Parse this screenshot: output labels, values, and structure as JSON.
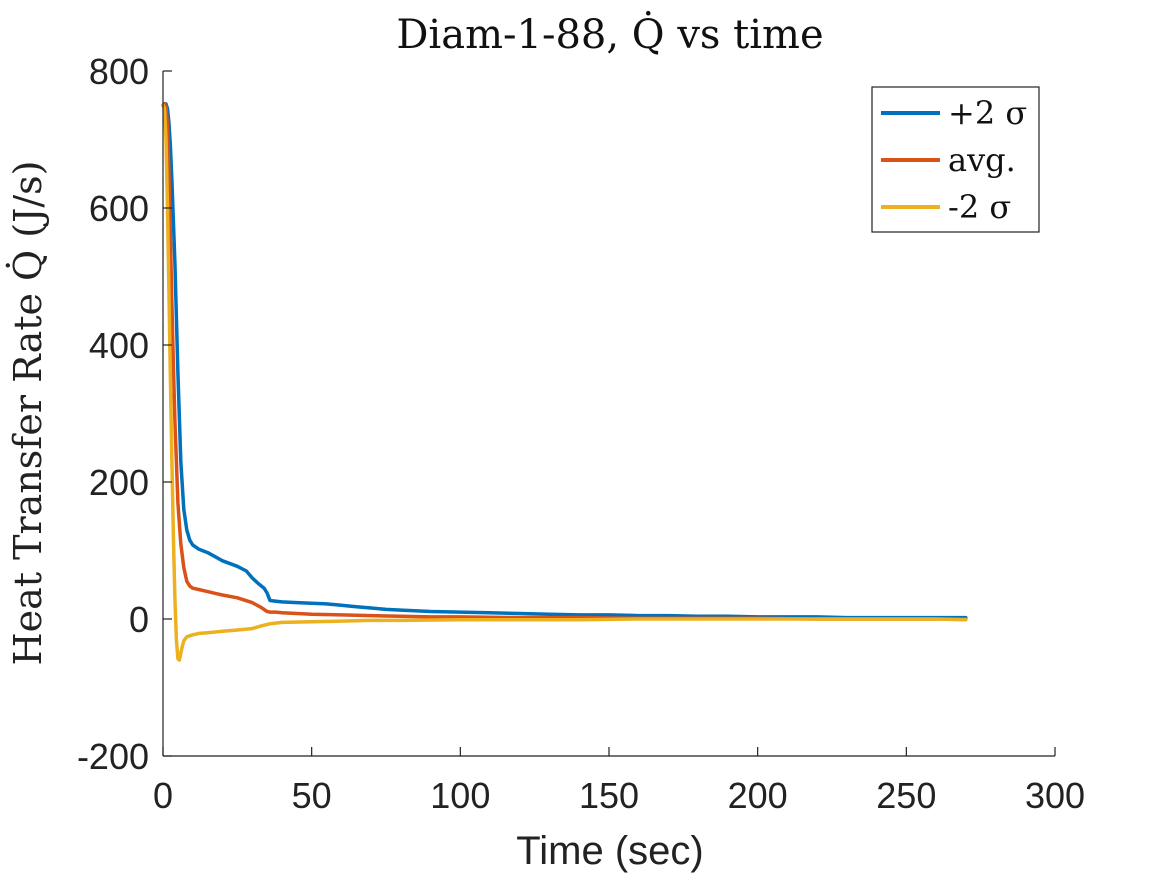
{
  "chart_data": {
    "type": "line",
    "title": "Diam-1-88, Q̇ vs time",
    "xlabel": "Time (sec)",
    "ylabel": "Heat Transfer Rate Q̇ (J/s)",
    "xlim": [
      0,
      300
    ],
    "ylim": [
      -200,
      800
    ],
    "xticks": [
      0,
      50,
      100,
      150,
      200,
      250,
      300
    ],
    "yticks": [
      -200,
      0,
      200,
      400,
      600,
      800
    ],
    "xtick_labels": [
      "0",
      "50",
      "100",
      "150",
      "200",
      "250",
      "300"
    ],
    "ytick_labels": [
      "-200",
      "0",
      "200",
      "400",
      "600",
      "800"
    ],
    "grid": false,
    "legend": "top-right",
    "series": [
      {
        "name": "+2 σ",
        "color": "#0072BD",
        "x": [
          0,
          0.5,
          1,
          1.5,
          2,
          2.5,
          3,
          4,
          5,
          6,
          7,
          8,
          9,
          10,
          12,
          15,
          18,
          20,
          25,
          28,
          30,
          32,
          34,
          35,
          36,
          38,
          40,
          45,
          50,
          55,
          60,
          65,
          70,
          75,
          80,
          90,
          100,
          110,
          120,
          130,
          140,
          150,
          160,
          170,
          180,
          190,
          200,
          210,
          220,
          230,
          240,
          250,
          260,
          270
        ],
        "y": [
          750,
          752,
          752,
          745,
          725,
          690,
          640,
          520,
          360,
          230,
          160,
          130,
          115,
          108,
          102,
          97,
          90,
          85,
          77,
          70,
          60,
          52,
          45,
          38,
          27,
          26,
          25,
          24,
          23,
          22,
          20,
          18,
          16,
          14,
          13,
          11,
          10,
          9,
          8,
          7,
          6,
          6,
          5,
          5,
          4,
          4,
          3,
          3,
          3,
          2,
          2,
          2,
          2,
          2
        ]
      },
      {
        "name": "avg.",
        "color": "#D95319",
        "x": [
          0,
          0.5,
          1,
          1.5,
          2,
          2.5,
          3,
          3.5,
          4,
          4.5,
          5,
          6,
          7,
          8,
          9,
          10,
          12,
          15,
          18,
          20,
          25,
          30,
          33,
          35,
          36,
          38,
          40,
          45,
          50,
          60,
          70,
          80,
          90,
          100,
          120,
          140,
          160,
          180,
          200,
          220,
          240,
          260,
          270
        ],
        "y": [
          750,
          752,
          748,
          720,
          650,
          560,
          460,
          370,
          290,
          230,
          170,
          110,
          75,
          55,
          48,
          45,
          43,
          40,
          37,
          35,
          31,
          24,
          17,
          11,
          10,
          10,
          9,
          8,
          7,
          6,
          5,
          4,
          3,
          3,
          2,
          2,
          1,
          1,
          1,
          0,
          0,
          0,
          0
        ]
      },
      {
        "name": "-2 σ",
        "color": "#EDB120",
        "x": [
          0,
          0.5,
          1,
          1.5,
          2,
          2.5,
          3,
          3.5,
          4,
          4.5,
          5,
          5.5,
          6,
          6.5,
          7,
          8,
          10,
          12,
          15,
          20,
          25,
          30,
          33,
          35,
          36,
          38,
          40,
          50,
          60,
          70,
          80,
          100,
          120,
          140,
          160,
          180,
          200,
          220,
          240,
          260,
          270
        ],
        "y": [
          750,
          745,
          700,
          600,
          480,
          350,
          230,
          120,
          30,
          -30,
          -58,
          -60,
          -50,
          -40,
          -32,
          -26,
          -23,
          -21,
          -20,
          -18,
          -16,
          -14,
          -10,
          -8,
          -7,
          -6,
          -5,
          -4,
          -3,
          -2,
          -2,
          -1,
          -1,
          -1,
          0,
          0,
          0,
          0,
          0,
          0,
          -1
        ]
      }
    ]
  }
}
